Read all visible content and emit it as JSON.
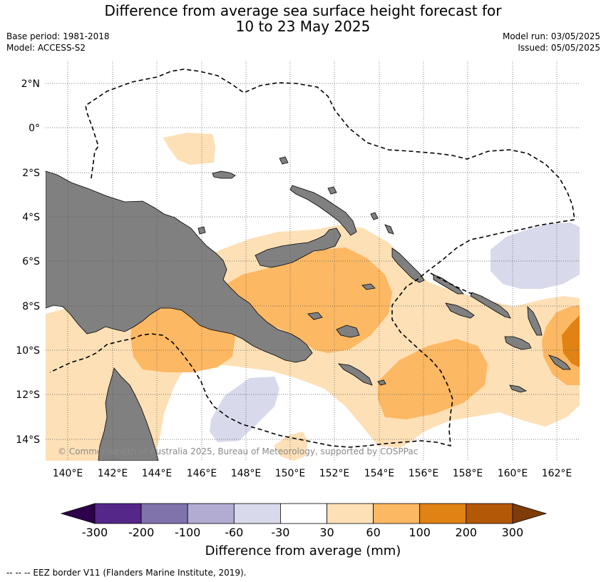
{
  "title": {
    "line1": "Difference from average sea surface height forecast for",
    "line2": "10 to 23 May 2025"
  },
  "meta": {
    "base_period": "Base period: 1981-2018",
    "model": "Model: ACCESS-S2",
    "model_run": "Model run: 03/05/2025",
    "issued": "Issued: 05/05/2025"
  },
  "map": {
    "region": "Papua New Guinea and Solomon Islands",
    "lon_labels": [
      "140°E",
      "142°E",
      "144°E",
      "146°E",
      "148°E",
      "150°E",
      "152°E",
      "154°E",
      "156°E",
      "158°E",
      "160°E",
      "162°E"
    ],
    "lat_labels": [
      "2°N",
      "0°",
      "2°S",
      "4°S",
      "6°S",
      "8°S",
      "10°S",
      "12°S",
      "14°S"
    ],
    "copyright": "© Commonwealth of Australia 2025, Bureau of Meteorology, supported by COSPPac",
    "colors": {
      "land": "#808080",
      "ocean": "#ffffff",
      "eez_border": "#000000"
    }
  },
  "colorbar": {
    "title": "Difference from average (mm)",
    "tick_labels": [
      "-300",
      "-200",
      "-100",
      "-60",
      "-30",
      "30",
      "60",
      "100",
      "200",
      "300"
    ],
    "bins": [
      {
        "range": "< -300",
        "color": "#2d004b"
      },
      {
        "range": "-300 to -200",
        "color": "#542788"
      },
      {
        "range": "-200 to -100",
        "color": "#8073ac"
      },
      {
        "range": "-100 to -60",
        "color": "#b2abd2"
      },
      {
        "range": "-60 to -30",
        "color": "#d8daeb"
      },
      {
        "range": "-30 to 30",
        "color": "#ffffff"
      },
      {
        "range": "30 to 60",
        "color": "#fee0b6"
      },
      {
        "range": "60 to 100",
        "color": "#fdb863"
      },
      {
        "range": "100 to 200",
        "color": "#e08214"
      },
      {
        "range": "200 to 300",
        "color": "#b35806"
      },
      {
        "range": "> 300",
        "color": "#7f3b08"
      }
    ]
  },
  "legend_footer": "--  --  -- EEZ border V11 (Flanders Marine Institute, 2019)."
}
